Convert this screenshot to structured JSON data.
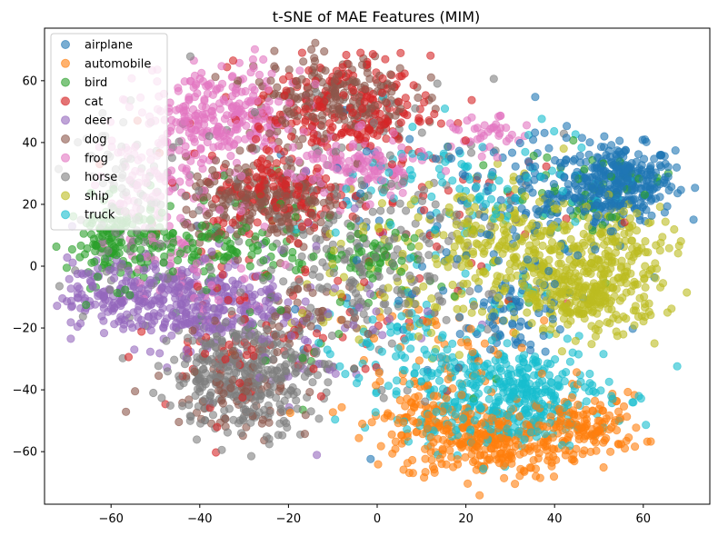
{
  "chart_data": {
    "type": "scatter",
    "title": "t-SNE of MAE Features (MIM)",
    "xlabel": "",
    "ylabel": "",
    "xlim": [
      -75,
      75
    ],
    "ylim": [
      -77,
      77
    ],
    "xticks": [
      -60,
      -40,
      -20,
      0,
      20,
      40,
      60
    ],
    "yticks": [
      -60,
      -40,
      -20,
      0,
      20,
      40,
      60
    ],
    "grid": false,
    "legend_position": "top-left",
    "marker_alpha": 0.6,
    "series": [
      {
        "name": "airplane",
        "color": "#1f77b4",
        "clusters": [
          {
            "cx": 55,
            "cy": 27,
            "sx": 6,
            "sy": 6,
            "n": 300
          },
          {
            "cx": 40,
            "cy": 22,
            "sx": 10,
            "sy": 10,
            "n": 130
          },
          {
            "cx": 32,
            "cy": -15,
            "sx": 6,
            "sy": 7,
            "n": 70
          },
          {
            "cx": 10,
            "cy": 10,
            "sx": 20,
            "sy": 18,
            "n": 60
          }
        ]
      },
      {
        "name": "automobile",
        "color": "#ff7f0e",
        "clusters": [
          {
            "cx": 25,
            "cy": -57,
            "sx": 10,
            "sy": 6,
            "n": 280
          },
          {
            "cx": 48,
            "cy": -52,
            "sx": 6,
            "sy": 5,
            "n": 120
          },
          {
            "cx": 10,
            "cy": -48,
            "sx": 6,
            "sy": 6,
            "n": 80
          },
          {
            "cx": 20,
            "cy": -30,
            "sx": 14,
            "sy": 10,
            "n": 60
          }
        ]
      },
      {
        "name": "bird",
        "color": "#2ca02c",
        "clusters": [
          {
            "cx": -58,
            "cy": 8,
            "sx": 6,
            "sy": 7,
            "n": 150
          },
          {
            "cx": -35,
            "cy": 5,
            "sx": 10,
            "sy": 6,
            "n": 90
          },
          {
            "cx": 0,
            "cy": 3,
            "sx": 4,
            "sy": 4,
            "n": 40
          },
          {
            "cx": 48,
            "cy": 25,
            "sx": 8,
            "sy": 6,
            "n": 50
          },
          {
            "cx": -20,
            "cy": 0,
            "sx": 25,
            "sy": 20,
            "n": 80
          }
        ]
      },
      {
        "name": "cat",
        "color": "#d62728",
        "clusters": [
          {
            "cx": -8,
            "cy": 50,
            "sx": 10,
            "sy": 9,
            "n": 220
          },
          {
            "cx": -22,
            "cy": 24,
            "sx": 8,
            "sy": 6,
            "n": 120
          },
          {
            "cx": -30,
            "cy": -25,
            "sx": 10,
            "sy": 10,
            "n": 60
          },
          {
            "cx": -10,
            "cy": 15,
            "sx": 25,
            "sy": 25,
            "n": 100
          }
        ]
      },
      {
        "name": "deer",
        "color": "#9467bd",
        "clusters": [
          {
            "cx": -45,
            "cy": -12,
            "sx": 12,
            "sy": 7,
            "n": 350
          },
          {
            "cx": -60,
            "cy": -8,
            "sx": 5,
            "sy": 5,
            "n": 60
          },
          {
            "cx": -15,
            "cy": -15,
            "sx": 15,
            "sy": 15,
            "n": 60
          }
        ]
      },
      {
        "name": "dog",
        "color": "#8c564b",
        "clusters": [
          {
            "cx": -10,
            "cy": 55,
            "sx": 9,
            "sy": 7,
            "n": 220
          },
          {
            "cx": -25,
            "cy": 20,
            "sx": 9,
            "sy": 7,
            "n": 250
          },
          {
            "cx": -32,
            "cy": -38,
            "sx": 9,
            "sy": 8,
            "n": 80
          },
          {
            "cx": -18,
            "cy": -15,
            "sx": 5,
            "sy": 4,
            "n": 40
          }
        ]
      },
      {
        "name": "frog",
        "color": "#e377c2",
        "clusters": [
          {
            "cx": -35,
            "cy": 48,
            "sx": 9,
            "sy": 8,
            "n": 280
          },
          {
            "cx": -5,
            "cy": 32,
            "sx": 8,
            "sy": 5,
            "n": 120
          },
          {
            "cx": -50,
            "cy": 25,
            "sx": 6,
            "sy": 10,
            "n": 100
          },
          {
            "cx": 25,
            "cy": 42,
            "sx": 4,
            "sy": 3,
            "n": 40
          },
          {
            "cx": -40,
            "cy": 0,
            "sx": 10,
            "sy": 10,
            "n": 60
          }
        ]
      },
      {
        "name": "horse",
        "color": "#7f7f7f",
        "clusters": [
          {
            "cx": -30,
            "cy": -35,
            "sx": 8,
            "sy": 9,
            "n": 380
          },
          {
            "cx": -5,
            "cy": -5,
            "sx": 15,
            "sy": 15,
            "n": 180
          },
          {
            "cx": -55,
            "cy": 20,
            "sx": 7,
            "sy": 15,
            "n": 100
          },
          {
            "cx": 0,
            "cy": 25,
            "sx": 20,
            "sy": 20,
            "n": 100
          }
        ]
      },
      {
        "name": "ship",
        "color": "#bcbd22",
        "clusters": [
          {
            "cx": 48,
            "cy": -8,
            "sx": 8,
            "sy": 7,
            "n": 320
          },
          {
            "cx": 30,
            "cy": 5,
            "sx": 10,
            "sy": 10,
            "n": 230
          },
          {
            "cx": 55,
            "cy": 10,
            "sx": 6,
            "sy": 6,
            "n": 80
          },
          {
            "cx": 10,
            "cy": 0,
            "sx": 15,
            "sy": 15,
            "n": 80
          }
        ]
      },
      {
        "name": "truck",
        "color": "#17becf",
        "clusters": [
          {
            "cx": 28,
            "cy": -42,
            "sx": 12,
            "sy": 8,
            "n": 420
          },
          {
            "cx": 25,
            "cy": 25,
            "sx": 15,
            "sy": 10,
            "n": 100
          },
          {
            "cx": 10,
            "cy": -20,
            "sx": 12,
            "sy": 10,
            "n": 80
          }
        ]
      }
    ]
  }
}
